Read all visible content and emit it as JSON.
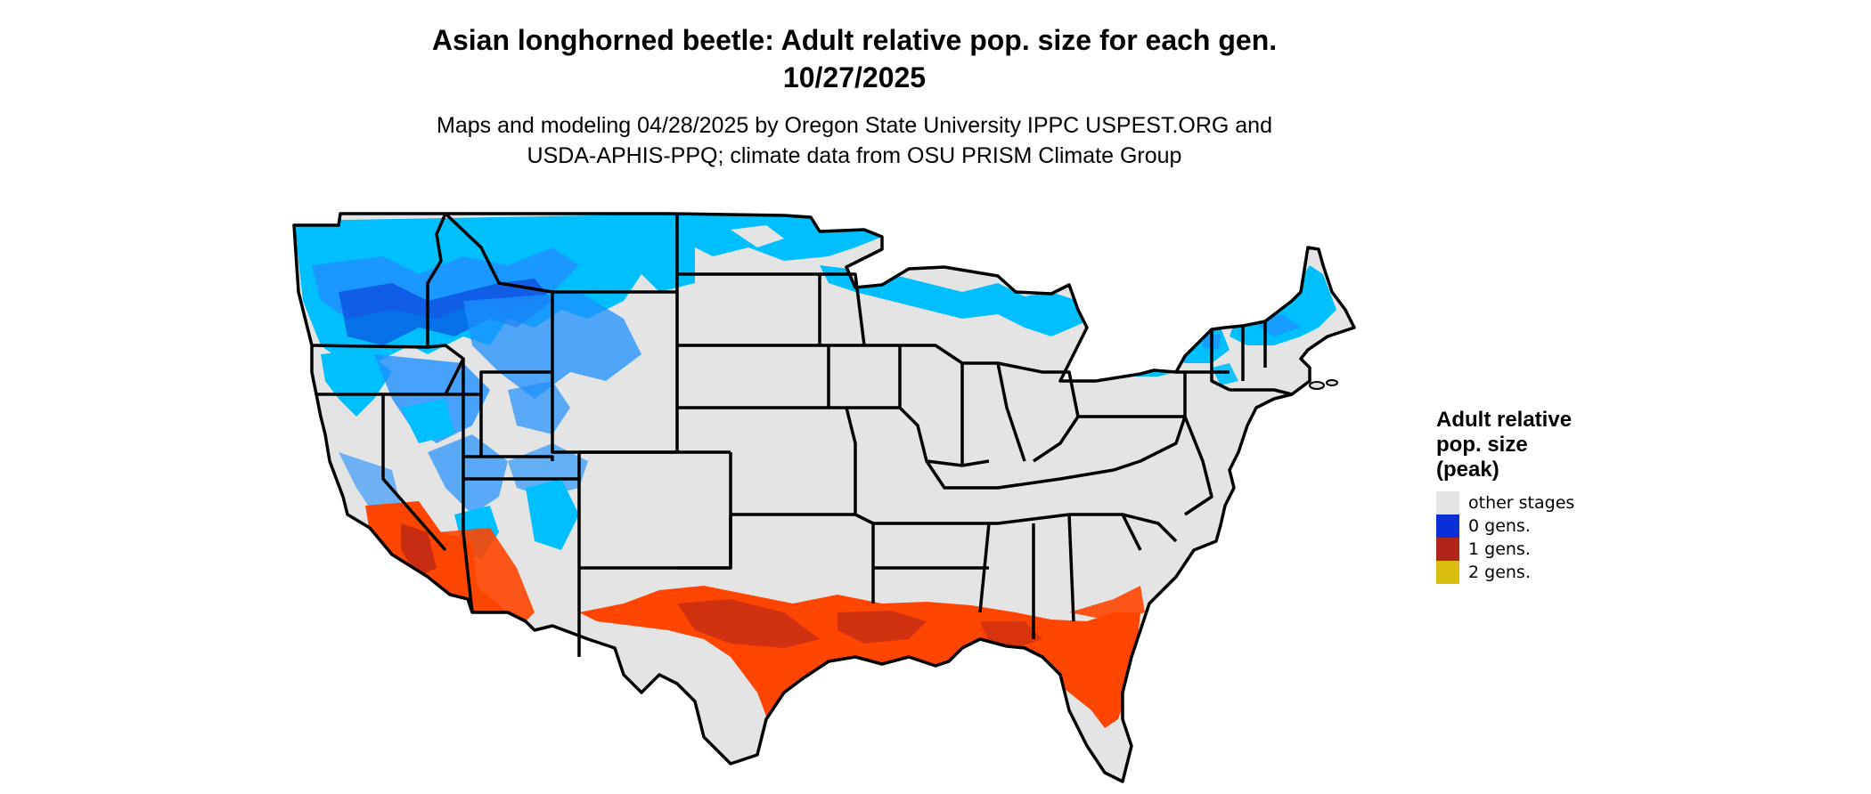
{
  "title_line1": "Asian longhorned beetle: Adult relative pop. size for each gen.",
  "title_line2": "10/27/2025",
  "subtitle_line1": "Maps and modeling 04/28/2025 by Oregon State University IPPC USPEST.ORG and",
  "subtitle_line2": "USDA-APHIS-PPQ; climate data from OSU PRISM Climate Group",
  "legend": {
    "title_line1": "Adult relative",
    "title_line2": "pop. size",
    "title_line3": "(peak)",
    "items": [
      {
        "label": "other stages",
        "color": "#e4e4e4"
      },
      {
        "label": "0 gens.",
        "color": "#0a2fd6"
      },
      {
        "label": "1 gens.",
        "color": "#b0241a"
      },
      {
        "label": "2 gens.",
        "color": "#d9bd0f"
      }
    ]
  },
  "map_colors": {
    "land": "#e4e4e4",
    "zero_gens_light": "#00bfff",
    "zero_gens_mid": "#1e90ff",
    "zero_gens_dark": "#0a2fd6",
    "one_gens_light": "#ff4500",
    "one_gens_dark": "#b0241a",
    "border": "#000000"
  }
}
